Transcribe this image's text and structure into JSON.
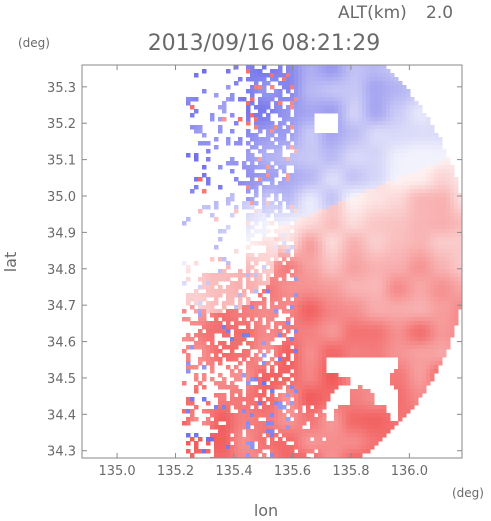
{
  "header": {
    "altitude_label": "ALT(km)",
    "altitude_value": "2.0",
    "timestamp": "2013/09/16 08:21:29"
  },
  "chart_data": {
    "type": "heatmap",
    "title": "2013/09/16 08:21:29",
    "subtitle": "ALT(km) 2.0",
    "xlabel": "lon",
    "ylabel": "lat",
    "x_unit": "(deg)",
    "y_unit": "(deg)",
    "xlim": [
      134.88,
      136.18
    ],
    "ylim": [
      34.28,
      35.36
    ],
    "x_ticks": [
      135.0,
      135.2,
      135.4,
      135.6,
      135.8,
      136.0
    ],
    "x_tick_labels": [
      "135.0",
      "135.2",
      "135.4",
      "135.6",
      "135.8",
      "136.0"
    ],
    "y_ticks": [
      34.3,
      34.4,
      34.5,
      34.6,
      34.7,
      34.8,
      34.9,
      35.0,
      35.1,
      35.2,
      35.3
    ],
    "y_tick_labels": [
      "34.3",
      "34.4",
      "34.5",
      "34.6",
      "34.7",
      "34.8",
      "34.9",
      "35.0",
      "35.1",
      "35.2",
      "35.3"
    ],
    "grid": false,
    "colors": {
      "toward": "#5a5ae6",
      "away": "#f04848",
      "frame": "#8a8a8a"
    },
    "coverage_center": [
      135.42,
      34.82
    ],
    "coverage_radius_lon": 0.75,
    "zero_line_angle_deg": 22
  }
}
